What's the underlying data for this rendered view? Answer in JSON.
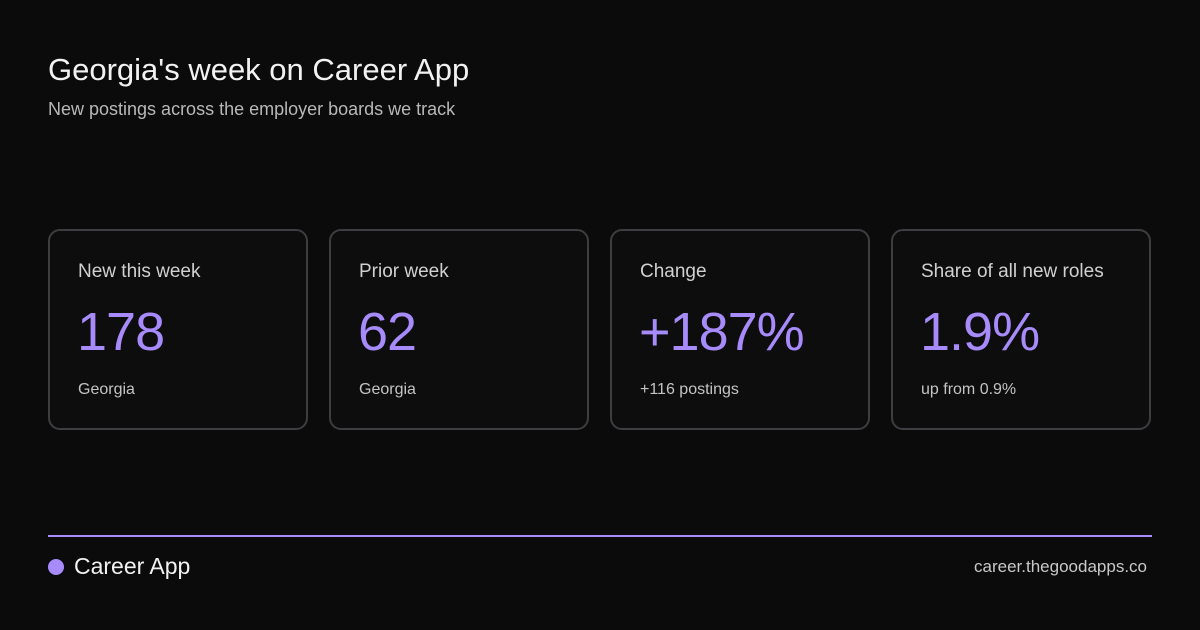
{
  "header": {
    "title": "Georgia's week on Career App",
    "subtitle": "New postings across the employer boards we track"
  },
  "cards": [
    {
      "label": "New this week",
      "value": "178",
      "note": "Georgia"
    },
    {
      "label": "Prior week",
      "value": "62",
      "note": "Georgia"
    },
    {
      "label": "Change",
      "value": "+187%",
      "note": "+116 postings"
    },
    {
      "label": "Share of all new roles",
      "value": "1.9%",
      "note": "up from 0.9%"
    }
  ],
  "footer": {
    "brand": "Career App",
    "url": "career.thegoodapps.co"
  }
}
